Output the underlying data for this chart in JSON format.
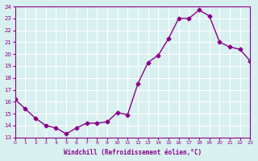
{
  "x": [
    0,
    1,
    2,
    3,
    4,
    5,
    6,
    7,
    8,
    9,
    10,
    11,
    12,
    13,
    14,
    15,
    16,
    17,
    18,
    19,
    20,
    21,
    22,
    23
  ],
  "y": [
    16.2,
    15.4,
    14.6,
    14.0,
    13.8,
    13.3,
    13.8,
    14.2,
    14.2,
    14.3,
    15.1,
    14.9,
    17.5,
    19.3,
    19.9,
    21.3,
    23.0,
    23.0,
    23.7,
    23.2,
    21.0,
    20.6,
    20.4,
    19.4
  ],
  "line_color": "#8B008B",
  "marker": "D",
  "marker_size": 2.5,
  "bg_color": "#d8f0f0",
  "grid_color": "#ffffff",
  "xlabel": "Windchill (Refroidissement éolien,°C)",
  "ylim": [
    13,
    24
  ],
  "xlim": [
    0,
    23
  ],
  "yticks": [
    13,
    14,
    15,
    16,
    17,
    18,
    19,
    20,
    21,
    22,
    23,
    24
  ],
  "xticks": [
    0,
    1,
    2,
    3,
    4,
    5,
    6,
    7,
    8,
    9,
    10,
    11,
    12,
    13,
    14,
    15,
    16,
    17,
    18,
    19,
    20,
    21,
    22,
    23
  ]
}
